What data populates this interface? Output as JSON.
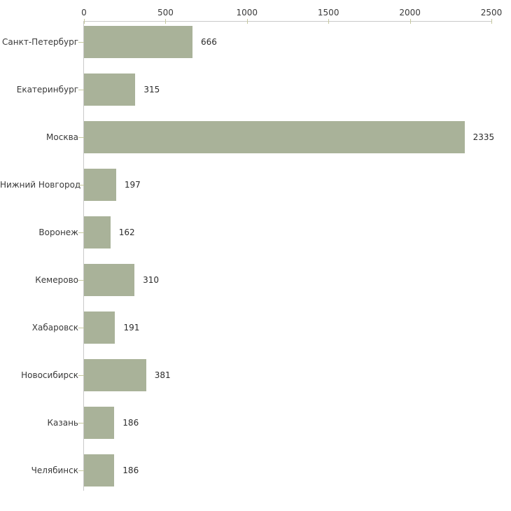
{
  "chart_data": {
    "type": "bar",
    "orientation": "horizontal",
    "title": "",
    "xlabel": "",
    "ylabel": "",
    "categories": [
      "Санкт-Петербург",
      "Екатеринбург",
      "Москва",
      "Нижний Новгород",
      "Воронеж",
      "Кемерово",
      "Хабаровск",
      "Новосибирск",
      "Казань",
      "Челябинск"
    ],
    "values": [
      666,
      315,
      2335,
      197,
      162,
      310,
      191,
      381,
      186,
      186
    ],
    "data_labels": [
      "666",
      "315",
      "2335",
      "197",
      "162",
      "310",
      "191",
      "381",
      "186",
      "186"
    ],
    "x_ticks": [
      0,
      500,
      1000,
      1500,
      2000,
      2500
    ],
    "x_tick_labels": [
      "0",
      "500",
      "1000",
      "1500",
      "2000",
      "2500"
    ],
    "xlim": [
      0,
      2500
    ],
    "axis_position": "top",
    "grid": false,
    "legend": false,
    "colors": {
      "bar_fill": "#a9b299",
      "axis_line": "#c8c8c8",
      "tick_mark": "#c6c89e",
      "tick_text": "#3a3a3a",
      "value_text": "#2b2b2b",
      "background": "#ffffff"
    }
  }
}
